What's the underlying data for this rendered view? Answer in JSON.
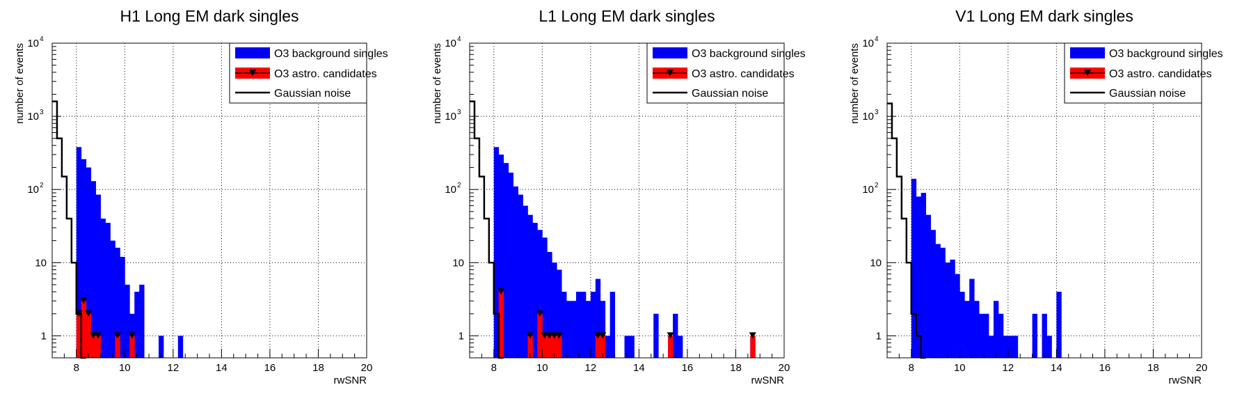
{
  "chart_data": [
    {
      "type": "bar",
      "title": "H1 Long EM dark singles",
      "xlabel": "rwSNR",
      "ylabel": "number of events",
      "xlim": [
        7,
        20
      ],
      "ylim": [
        0.5,
        10000
      ],
      "yscale": "log",
      "grid": true,
      "legend_position": "top-right",
      "bin_width": 0.2,
      "legend": [
        "O3 background singles",
        "O3 astro. candidates",
        "Gaussian noise"
      ],
      "series": [
        {
          "name": "O3 background singles",
          "style": "filled-histogram",
          "color": "#0000ff",
          "x": [
            8.0,
            8.2,
            8.4,
            8.6,
            8.8,
            9.0,
            9.2,
            9.4,
            9.6,
            9.8,
            10.0,
            10.2,
            10.4,
            10.6,
            11.4,
            12.2
          ],
          "values": [
            380,
            260,
            200,
            130,
            85,
            40,
            35,
            20,
            16,
            12,
            5,
            2,
            4,
            5,
            1,
            1
          ]
        },
        {
          "name": "O3 astro. candidates",
          "style": "filled-histogram-markers",
          "color": "#ff0000",
          "x": [
            8.0,
            8.2,
            8.4,
            8.6,
            8.8,
            9.6,
            10.2
          ],
          "values": [
            2,
            3,
            2,
            1,
            1,
            1,
            1
          ]
        },
        {
          "name": "Gaussian noise",
          "style": "step-line",
          "color": "#000000",
          "x": [
            7.0,
            7.2,
            7.4,
            7.6,
            7.8,
            8.0,
            8.2
          ],
          "values": [
            1600,
            500,
            150,
            40,
            10,
            2,
            0.5
          ]
        }
      ]
    },
    {
      "type": "bar",
      "title": "L1 Long EM dark singles",
      "xlabel": "rwSNR",
      "ylabel": "number of events",
      "xlim": [
        7,
        20
      ],
      "ylim": [
        0.5,
        10000
      ],
      "yscale": "log",
      "grid": true,
      "legend_position": "top-right",
      "bin_width": 0.2,
      "legend": [
        "O3 background singles",
        "O3 astro. candidates",
        "Gaussian noise"
      ],
      "series": [
        {
          "name": "O3 background singles",
          "style": "filled-histogram",
          "color": "#0000ff",
          "x": [
            8.0,
            8.2,
            8.4,
            8.6,
            8.8,
            9.0,
            9.2,
            9.4,
            9.6,
            9.8,
            10.0,
            10.2,
            10.4,
            10.6,
            10.8,
            11.0,
            11.2,
            11.4,
            11.6,
            11.8,
            12.0,
            12.2,
            12.4,
            12.6,
            12.8,
            13.4,
            13.6,
            14.6,
            15.2,
            15.4,
            15.6,
            18.6
          ],
          "values": [
            380,
            300,
            230,
            170,
            110,
            85,
            60,
            45,
            35,
            28,
            22,
            14,
            10,
            8,
            4,
            3,
            3,
            4,
            4,
            3,
            4,
            6,
            3,
            1,
            4,
            1,
            1,
            2,
            1,
            2,
            1,
            1
          ]
        },
        {
          "name": "O3 astro. candidates",
          "style": "filled-histogram-markers",
          "color": "#ff0000",
          "x": [
            8.2,
            9.4,
            9.8,
            10.0,
            10.2,
            10.4,
            10.6,
            12.2,
            12.4,
            15.2,
            18.6
          ],
          "values": [
            4,
            1,
            2,
            1,
            1,
            1,
            1,
            1,
            1,
            1,
            1
          ]
        },
        {
          "name": "Gaussian noise",
          "style": "step-line",
          "color": "#000000",
          "x": [
            7.0,
            7.2,
            7.4,
            7.6,
            7.8,
            8.0,
            8.2
          ],
          "values": [
            1600,
            500,
            150,
            40,
            10,
            2,
            0.5
          ]
        }
      ]
    },
    {
      "type": "bar",
      "title": "V1 Long EM dark singles",
      "xlabel": "rwSNR",
      "ylabel": "number of events",
      "xlim": [
        7,
        20
      ],
      "ylim": [
        0.5,
        10000
      ],
      "yscale": "log",
      "grid": true,
      "legend_position": "top-right",
      "bin_width": 0.2,
      "legend": [
        "O3 background singles",
        "O3 astro. candidates",
        "Gaussian noise"
      ],
      "series": [
        {
          "name": "O3 background singles",
          "style": "filled-histogram",
          "color": "#0000ff",
          "x": [
            8.0,
            8.2,
            8.4,
            8.6,
            8.8,
            9.0,
            9.2,
            9.4,
            9.6,
            9.8,
            10.0,
            10.2,
            10.4,
            10.6,
            10.8,
            11.0,
            11.2,
            11.4,
            11.6,
            11.8,
            12.0,
            12.2,
            13.0,
            13.4,
            13.6,
            14.0
          ],
          "values": [
            140,
            80,
            90,
            45,
            28,
            18,
            16,
            10,
            11,
            7,
            4,
            3,
            6,
            3,
            2,
            2,
            1,
            3,
            2,
            1,
            1,
            1,
            2,
            2,
            1,
            4
          ]
        },
        {
          "name": "Gaussian noise",
          "style": "step-line",
          "color": "#000000",
          "x": [
            7.0,
            7.2,
            7.4,
            7.6,
            7.8,
            8.0,
            8.2,
            8.4
          ],
          "values": [
            1500,
            500,
            150,
            40,
            10,
            2,
            1,
            0.5
          ]
        }
      ]
    }
  ]
}
